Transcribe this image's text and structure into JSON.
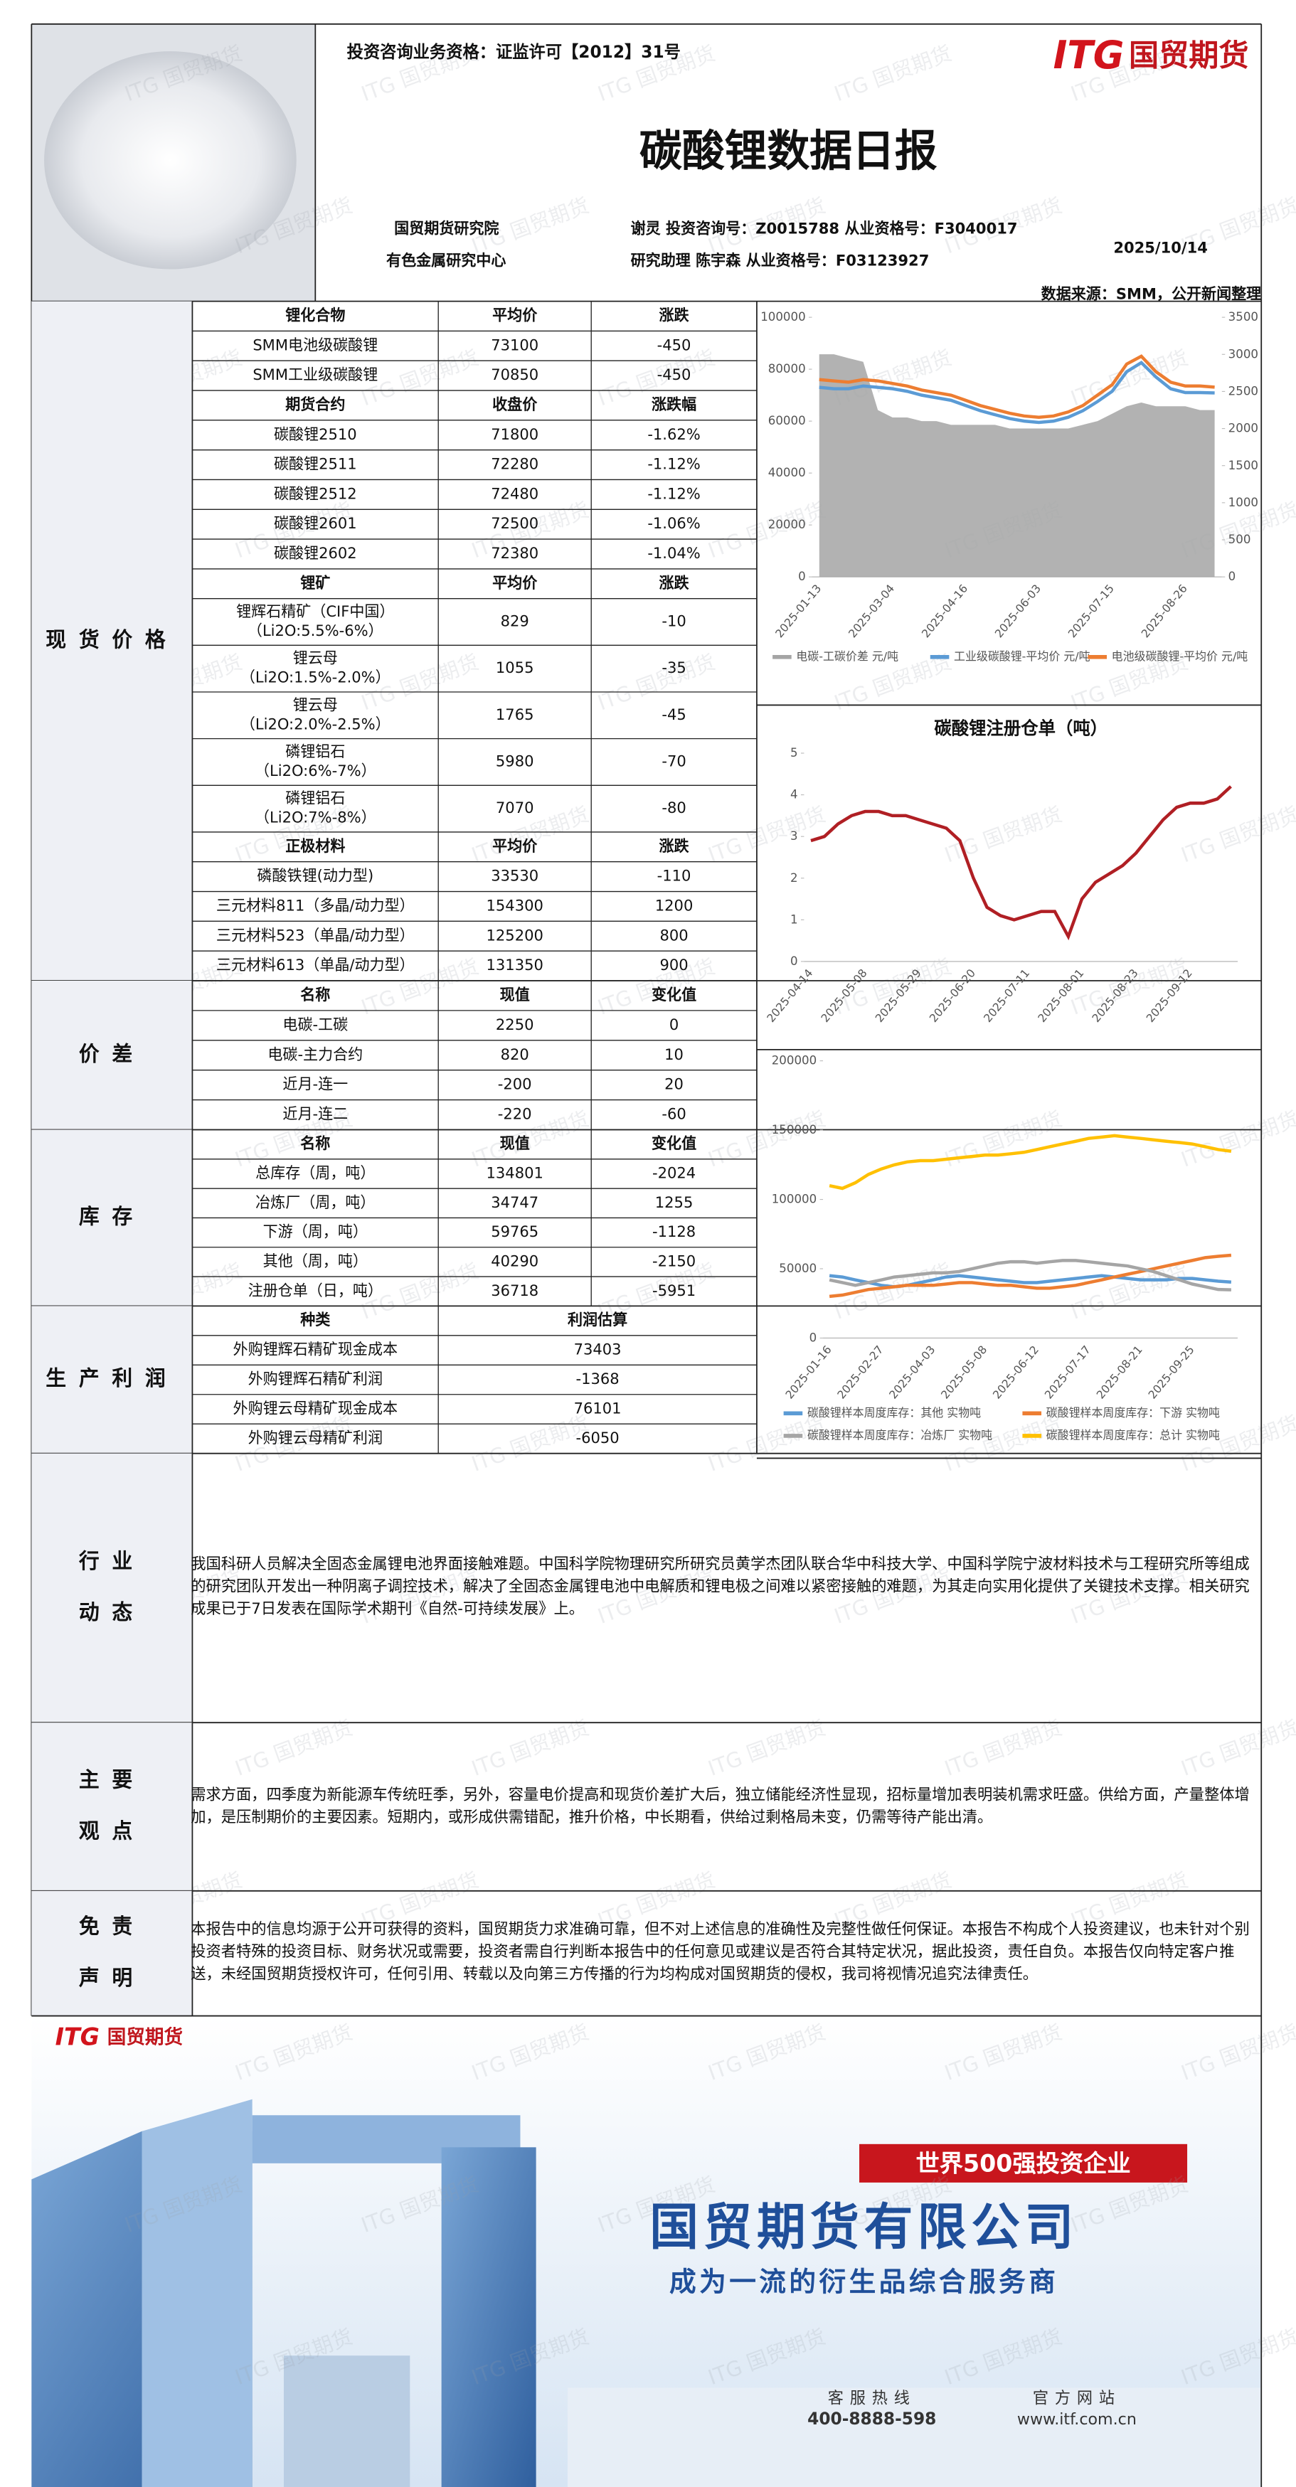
{
  "header": {
    "license": "投资咨询业务资格：证监许可【2012】31号",
    "logo_en": "ITG",
    "logo_cn": "国贸期货",
    "title": "碳酸锂数据日报",
    "institute": "国贸期货研究院",
    "center": "有色金属研究中心",
    "analyst": "谢灵 投资咨询号：Z0015788 从业资格号：F3040017",
    "assistant": "研究助理 陈宇森 从业资格号：F03123927",
    "date": "2025/10/14",
    "source": "数据来源：SMM，公开新闻整理"
  },
  "watermark": "ITG 国贸期货",
  "sections": [
    {
      "label": "现货价格",
      "groups": [
        {
          "header": [
            "锂化合物",
            "平均价",
            "涨跌"
          ],
          "rows": [
            [
              "SMM电池级碳酸锂",
              "73100",
              "-450"
            ],
            [
              "SMM工业级碳酸锂",
              "70850",
              "-450"
            ]
          ]
        },
        {
          "header": [
            "期货合约",
            "收盘价",
            "涨跌幅"
          ],
          "rows": [
            [
              "碳酸锂2510",
              "71800",
              "-1.62%"
            ],
            [
              "碳酸锂2511",
              "72280",
              "-1.12%"
            ],
            [
              "碳酸锂2512",
              "72480",
              "-1.12%"
            ],
            [
              "碳酸锂2601",
              "72500",
              "-1.06%"
            ],
            [
              "碳酸锂2602",
              "72380",
              "-1.04%"
            ]
          ]
        },
        {
          "header": [
            "锂矿",
            "平均价",
            "涨跌"
          ],
          "rows": [
            [
              [
                "锂辉石精矿（CIF中国）",
                "（Li2O:5.5%-6%）"
              ],
              "829",
              "-10"
            ],
            [
              [
                "锂云母",
                "（Li2O:1.5%-2.0%）"
              ],
              "1055",
              "-35"
            ],
            [
              [
                "锂云母",
                "（Li2O:2.0%-2.5%）"
              ],
              "1765",
              "-45"
            ],
            [
              [
                "磷锂铝石",
                "（Li2O:6%-7%）"
              ],
              "5980",
              "-70"
            ],
            [
              [
                "磷锂铝石",
                "（Li2O:7%-8%）"
              ],
              "7070",
              "-80"
            ]
          ]
        },
        {
          "header": [
            "正极材料",
            "平均价",
            "涨跌"
          ],
          "rows": [
            [
              "磷酸铁锂(动力型)",
              "33530",
              "-110"
            ],
            [
              "三元材料811（多晶/动力型）",
              "154300",
              "1200"
            ],
            [
              "三元材料523（单晶/动力型）",
              "125200",
              "800"
            ],
            [
              "三元材料613（单晶/动力型）",
              "131350",
              "900"
            ]
          ]
        }
      ]
    },
    {
      "label": "价差",
      "groups": [
        {
          "header": [
            "名称",
            "现值",
            "变化值"
          ],
          "rows": [
            [
              "电碳-工碳",
              "2250",
              "0"
            ],
            [
              "电碳-主力合约",
              "820",
              "10"
            ],
            [
              "近月-连一",
              "-200",
              "20"
            ],
            [
              "近月-连二",
              "-220",
              "-60"
            ]
          ]
        }
      ]
    },
    {
      "label": "库存",
      "groups": [
        {
          "header": [
            "名称",
            "现值",
            "变化值"
          ],
          "rows": [
            [
              "总库存（周，吨）",
              "134801",
              "-2024"
            ],
            [
              "冶炼厂（周，吨）",
              "34747",
              "1255"
            ],
            [
              "下游（周，吨）",
              "59765",
              "-1128"
            ],
            [
              "其他（周，吨）",
              "40290",
              "-2150"
            ],
            [
              "注册仓单（日，吨）",
              "36718",
              "-5951"
            ]
          ]
        }
      ]
    },
    {
      "label": "生产利润",
      "groups": [
        {
          "header": [
            "种类",
            "利润估算"
          ],
          "rows": [
            [
              "外购锂辉石精矿现金成本",
              "73403"
            ],
            [
              "外购锂辉石精矿利润",
              "-1368"
            ],
            [
              "外购锂云母精矿现金成本",
              "76101"
            ],
            [
              "外购锂云母精矿利润",
              "-6050"
            ]
          ]
        }
      ]
    },
    {
      "label": "行业动态",
      "text": "我国科研人员解决全固态金属锂电池界面接触难题。中国科学院物理研究所研究员黄学杰团队联合华中科技大学、中国科学院宁波材料技术与工程研究所等组成的研究团队开发出一种阴离子调控技术，解决了全固态金属锂电池中电解质和锂电极之间难以紧密接触的难题，为其走向实用化提供了关键技术支撑。相关研究成果已于7日发表在国际学术期刊《自然-可持续发展》上。"
    },
    {
      "label": "主要观点",
      "text": "需求方面，四季度为新能源车传统旺季，另外，容量电价提高和现货价差扩大后，独立储能经济性显现，招标量增加表明装机需求旺盛。供给方面，产量整体增加，是压制期价的主要因素。短期内，或形成供需错配，推升价格，中长期看，供给过剩格局未变，仍需等待产能出清。"
    },
    {
      "label": "免责声明",
      "text": "本报告中的信息均源于公开可获得的资料，国贸期货力求准确可靠，但不对上述信息的准确性及完整性做任何保证。本报告不构成个人投资建议，也未针对个别投资者特殊的投资目标、财务状况或需要，投资者需自行判断本报告中的任何意见或建议是否符合其特定状况，据此投资，责任自负。本报告仅向特定客户推送，未经国贸期货授权许可，任何引用、转载以及向第三方传播的行为均构成对国贸期货的侵权，我司将视情况追究法律责任。"
    }
  ],
  "chart_data": [
    {
      "type": "line",
      "categories": [
        "2025-01-13",
        null,
        null,
        null,
        null,
        "2025-03-04",
        null,
        null,
        null,
        null,
        "2025-04-16",
        null,
        null,
        null,
        null,
        "2025-06-03",
        null,
        null,
        null,
        null,
        "2025-07-15",
        null,
        null,
        null,
        null,
        "2025-08-26",
        null,
        null
      ],
      "ylim": [
        0,
        100000
      ],
      "yticks": [
        0,
        20000,
        40000,
        60000,
        80000,
        100000
      ],
      "y2lim": [
        0,
        3500
      ],
      "y2ticks": [
        0,
        500,
        1000,
        1500,
        2000,
        2500,
        3000,
        3500
      ],
      "grid": false,
      "series": [
        {
          "name": "电碳-工碳价差 元/吨",
          "color": "#a5a5a5",
          "axis": "y2",
          "style": "area",
          "values": [
            3000,
            3000,
            2950,
            2900,
            2250,
            2150,
            2150,
            2100,
            2100,
            2050,
            2050,
            2050,
            2050,
            2000,
            2000,
            2000,
            2000,
            2000,
            2050,
            2100,
            2200,
            2300,
            2350,
            2300,
            2300,
            2300,
            2250,
            2250
          ]
        },
        {
          "name": "工业级碳酸锂-平均价 元/吨",
          "color": "#5b9bd5",
          "values": [
            73000,
            72500,
            72500,
            73500,
            73000,
            72500,
            71500,
            70000,
            69000,
            68000,
            66000,
            64000,
            62500,
            61000,
            60000,
            59500,
            60000,
            61500,
            64000,
            67500,
            71500,
            79000,
            82500,
            77000,
            72500,
            71000,
            71000,
            70850
          ]
        },
        {
          "name": "电池级碳酸锂-平均价 元/吨",
          "color": "#ed7d31",
          "values": [
            76000,
            75500,
            75000,
            76000,
            75500,
            74500,
            73500,
            72000,
            71000,
            70000,
            68000,
            66000,
            64500,
            63000,
            62000,
            61500,
            62000,
            63500,
            66000,
            70000,
            74000,
            82000,
            85000,
            79000,
            75000,
            73500,
            73500,
            73100
          ]
        }
      ]
    },
    {
      "type": "line",
      "title": "碳酸锂注册仓单（吨）",
      "categories": [
        "2025-04-14",
        null,
        null,
        null,
        "2025-05-08",
        null,
        null,
        null,
        "2025-05-29",
        null,
        null,
        null,
        "2025-06-20",
        null,
        null,
        null,
        "2025-07-11",
        null,
        null,
        null,
        "2025-08-01",
        null,
        null,
        null,
        "2025-08-23",
        null,
        null,
        null,
        "2025-09-12",
        null,
        null,
        null
      ],
      "ylim": [
        0,
        5
      ],
      "yticks": [
        0,
        1,
        2,
        3,
        4,
        5
      ],
      "grid": false,
      "series": [
        {
          "name": "注册仓单",
          "color": "#b01f24",
          "values": [
            2.9,
            3.0,
            3.3,
            3.5,
            3.6,
            3.6,
            3.5,
            3.5,
            3.4,
            3.3,
            3.2,
            2.9,
            2.0,
            1.3,
            1.1,
            1.0,
            1.1,
            1.2,
            1.2,
            0.6,
            1.5,
            1.9,
            2.1,
            2.3,
            2.6,
            3.0,
            3.4,
            3.7,
            3.8,
            3.8,
            3.9,
            4.2
          ]
        }
      ]
    },
    {
      "type": "line",
      "categories": [
        "2025-01-16",
        null,
        null,
        null,
        "2025-02-27",
        null,
        null,
        null,
        "2025-04-03",
        null,
        null,
        null,
        "2025-05-08",
        null,
        null,
        null,
        "2025-06-12",
        null,
        null,
        null,
        "2025-07-17",
        null,
        null,
        null,
        "2025-08-21",
        null,
        null,
        null,
        "2025-09-25",
        null,
        null,
        null
      ],
      "ylim": [
        0,
        200000
      ],
      "yticks": [
        0,
        50000,
        100000,
        150000,
        200000
      ],
      "grid": false,
      "series": [
        {
          "name": "碳酸锂样本周度库存：其他 实物吨",
          "color": "#5b9bd5",
          "values": [
            45000,
            44000,
            42000,
            40000,
            38000,
            37000,
            38000,
            40000,
            42000,
            44000,
            45000,
            44000,
            43000,
            42000,
            41000,
            40000,
            40000,
            41000,
            42000,
            43000,
            44000,
            45000,
            44000,
            43000,
            42000,
            42000,
            42000,
            43000,
            43000,
            42000,
            41000,
            40290
          ]
        },
        {
          "name": "碳酸锂样本周度库存：下游 实物吨",
          "color": "#ed7d31",
          "values": [
            30000,
            31000,
            33000,
            35000,
            36000,
            37000,
            38000,
            38000,
            38000,
            39000,
            40000,
            40000,
            39000,
            38000,
            38000,
            37000,
            36000,
            36000,
            37000,
            38000,
            40000,
            42000,
            44000,
            46000,
            48000,
            50000,
            52000,
            54000,
            56000,
            58000,
            59000,
            59765
          ]
        },
        {
          "name": "碳酸锂样本周度库存：冶炼厂 实物吨",
          "color": "#a5a5a5",
          "values": [
            42000,
            40000,
            38000,
            40000,
            42000,
            44000,
            45000,
            46000,
            47000,
            47000,
            48000,
            50000,
            52000,
            54000,
            55000,
            55000,
            54000,
            55000,
            56000,
            56000,
            55000,
            54000,
            53000,
            52000,
            50000,
            48000,
            45000,
            42000,
            39000,
            37000,
            35000,
            34747
          ]
        },
        {
          "name": "碳酸锂样本周度库存：总计 实物吨",
          "color": "#ffc000",
          "values": [
            110000,
            108000,
            112000,
            118000,
            122000,
            125000,
            127000,
            128000,
            128000,
            129000,
            130000,
            131000,
            132000,
            132000,
            133000,
            134000,
            136000,
            138000,
            140000,
            142000,
            144000,
            145000,
            146000,
            145000,
            144000,
            143000,
            142000,
            141000,
            140000,
            138000,
            136000,
            134801
          ]
        }
      ]
    }
  ],
  "banner": {
    "badge": "世界500强投资企业",
    "company": "国贸期货有限公司",
    "slogan": "成为一流的衍生品综合服务商",
    "hotline_label": "客服热线",
    "hotline": "400-8888-598",
    "site_label": "官方网站",
    "site": "www.itf.com.cn"
  }
}
